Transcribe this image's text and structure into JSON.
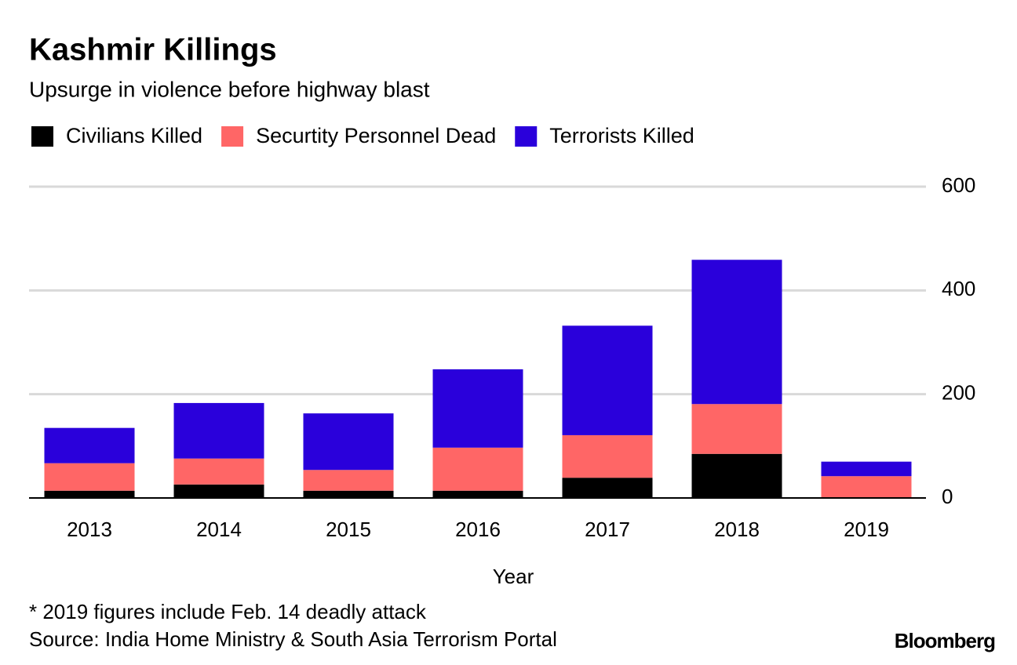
{
  "chart_data": {
    "type": "stacked_bar",
    "title": "Kashmir Killings",
    "subtitle": "Upsurge in violence before highway blast",
    "x_label": "Year",
    "notes": [
      "* 2019 figures include Feb. 14 deadly attack",
      "Source: India Home Ministry & South Asia Terrorism Portal"
    ],
    "brand": "Bloomberg",
    "categories": [
      "2013",
      "2014",
      "2015",
      "2016",
      "2017",
      "2018",
      "2019"
    ],
    "series": [
      {
        "name": "Civilians Killed",
        "color": "#000000",
        "values": [
          14,
          26,
          14,
          14,
          39,
          85,
          0
        ]
      },
      {
        "name": "Securtity Personnel Dead",
        "color": "#ff6666",
        "values": [
          53,
          50,
          40,
          83,
          82,
          96,
          42
        ]
      },
      {
        "name": "Terrorists Killed",
        "color": "#2a00db",
        "values": [
          68,
          107,
          109,
          151,
          211,
          278,
          28
        ]
      }
    ],
    "ylim": [
      0,
      600
    ],
    "yticks": [
      0,
      200,
      400,
      600
    ],
    "grid": true
  }
}
